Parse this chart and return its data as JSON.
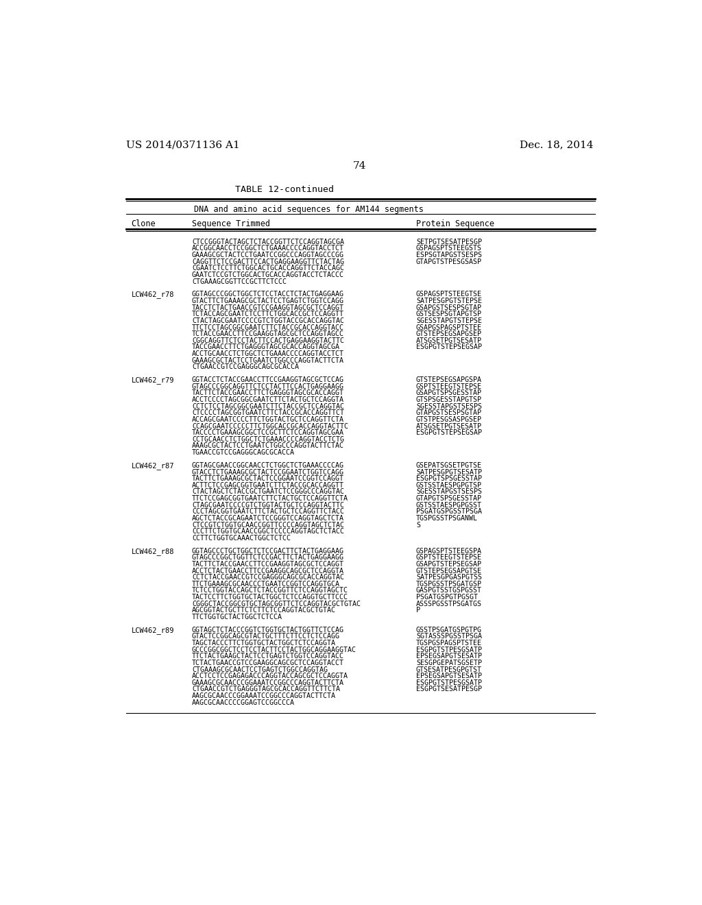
{
  "page_header_left": "US 2014/0371136 A1",
  "page_header_right": "Dec. 18, 2014",
  "page_number": "74",
  "table_title": "TABLE 12-continued",
  "table_subtitle": "DNA and amino acid sequences for AM144 segments",
  "col1_header": "Clone",
  "col2_header": "Sequence Trimmed",
  "col3_header": "Protein Sequence",
  "background_color": "#ffffff",
  "text_color": "#000000",
  "entries": [
    {
      "clone": "",
      "sequences": [
        [
          "CTCCGGGTACTAGCTCTACCGGTTCTCCAGGTAGCGA",
          "SETPGTSESATPESGP"
        ],
        [
          "ACCGGCAACCTCCGGCTCTGAAACCCCAGGTACCTCT",
          "GSPAGSPTSTEEGSTS"
        ],
        [
          "GAAAGCGCTACTCCTGAATCCGGCCCAGGTAGCCCGG",
          "ESPSGTAPGSTSESPS"
        ],
        [
          "CAGGTTCTCCGACTTCCACTGAGGAAGGTTCTACTAG",
          "GTAPGTSTPESGSASP"
        ],
        [
          "CGAATCTCCTTCTGGCACTGCACCAGGTTCTACCAGC",
          ""
        ],
        [
          "GAATCTCCGTCTGGCACTGCACCAGGTACCTCTACCC",
          ""
        ],
        [
          "CTGAAAGCGGTTCCGCTTCTCCC",
          ""
        ]
      ]
    },
    {
      "clone": "LCW462_r78",
      "sequences": [
        [
          "GGTAGCCCGGCTGGCTCTCCTACCTCTACTGAGGAAG",
          "GSPAGSPTSTEEGTSE"
        ],
        [
          "GTACTTCTGAAAGCGCTACTCCTGAGTCTGGTCCAGG",
          "SATPESGPGTSTEPSE"
        ],
        [
          "TACCTCTACTGAACCGTCCGAAGGTAGCGCTCCAGGT",
          "GSAPGSTSESPSGTAP"
        ],
        [
          "TCTACCAGCGAATCTCCTTCTGGCACCGCTCCAGGTT",
          "GSTSESPSGTAPGTSP"
        ],
        [
          "CTACTAGCGAATCCCCGTCTGGTACCGCACCAGGTAC",
          "SGESSTAPGTSTEPSE"
        ],
        [
          "TTCTCCTAGCGGCGAATCTTCTACCGCACCAGGTACC",
          "GSAPGSPAGSPTSTEE"
        ],
        [
          "TCTACCGAACCTTCCGAAGGTAGCGCTCCAGGTAGCC",
          "GTSTEPSEGSAPGSEP"
        ],
        [
          "CGGCAGGTTCTCCTACTTCCACTGAGGAAGGTACTTC",
          "ATSGSETPGTSESATP"
        ],
        [
          "TACCGAACCTTCTGAGGGTAGCGCACCAGGTAGCGA",
          "ESGPGTSTEPSEGSAP"
        ],
        [
          "ACCTGCAACCTCTGGCTCTGAAACCCCAGGTACCTCT",
          ""
        ],
        [
          "GAAAGCGCTACTCCTGAATCTGGCCCAGGTACTTCTA",
          ""
        ],
        [
          "CTGAACCGTCCGAGGGCAGCGCACCA",
          ""
        ]
      ]
    },
    {
      "clone": "LCW462_r79",
      "sequences": [
        [
          "GGTACCTCTACCGAACCTTCCGAAGGTAGCGCTCCAG",
          "GTSTEPSEGSAPGSPA"
        ],
        [
          "GTAGCCCGGCAGGTTCTCCTACTTCCACTGAGGAAGG",
          "GSPTSTEEGTSTEPSE"
        ],
        [
          "TACTTCTACCGAACCTTCTGAGGGTAGCGCACCAGGT",
          "GSAPGTSPSGESSTAP"
        ],
        [
          "ACCTCCCCTAGCGGCGAATCTTCTACTGCTCCAGGTA",
          "GTSPSGESSTAPGTSP"
        ],
        [
          "CCTCTCCTAGCGGCGAATCTTCTACCGCTCCAGGTAC",
          "SGESSTAPGSTSESPS"
        ],
        [
          "CTCCCCTAGCGGTGAATCTTCTACCGCACCAGGTTCT",
          "GTAPGSTSESPSGTAP"
        ],
        [
          "ACCAGCGAATCCCCTTCTGGTACTGCTCCAGGTTCTA",
          "GTSTPESGSASPGSEP"
        ],
        [
          "CCAGCGAATCCCCCTTCTGGCACCGCACCAGGTACTTC",
          "ATSGSETPGTSESATP"
        ],
        [
          "TACCCCTGAAAGCGGCTCCGCTTCTCCAGGTAGCGAA",
          "ESGPGTSTEPSEGSAP"
        ],
        [
          "CCTGCAACCTCTGGCTCTGAAACCCCAGGTACCTCTG",
          ""
        ],
        [
          "AAAGCGCTACTCCTGAATCTGGCCCAGGTACTTCTAC",
          ""
        ],
        [
          "TGAACCGTCCGAGGGCAGCGCACCA",
          ""
        ]
      ]
    },
    {
      "clone": "LCW462_r87",
      "sequences": [
        [
          "GGTAGCGAACCGGCAACCTCTGGCTCTGAAACCCCAG",
          "GSEPATSGSETPGTSE"
        ],
        [
          "GTACCTCTGAAAGCGCTACTCCGGAATCTGGTCCAGG",
          "SATPESGPGTSESATP"
        ],
        [
          "TACTTCTGAAAGCGCTACTCCGGAATCCGGTCCAGGT",
          "ESGPGTSPSGESSTAP"
        ],
        [
          "ACTTCTCCGAGCGGTGAATCTTCTACCGCACCAGGTT",
          "GSTSSTAESPGPGTSP"
        ],
        [
          "CTACTAGCTCTACCGCTGAATCTCCGGGCCCAGGTAC",
          "SGESSTAPGSTSESPS"
        ],
        [
          "TTCTCCGAGCGGTGAATCTTCTACTGCTCCAGGTTCTA",
          "GTAPGTSPSGESSTAP"
        ],
        [
          "CTAGCGAATCCCCGTCTGGTACTGCTCCAGGTACTTC",
          "GSTSSTAESPGPGSST"
        ],
        [
          "CCCTAGCGGTGAATCTTCTACTGCTCCAGGTTCTACC",
          "PSGATGSPGSSTPSGA"
        ],
        [
          "AGCTCTACCGCAGAATCTCCGGGTCCAGGTAGCTCTA",
          "TGSPGSSTPSGANWL"
        ],
        [
          "CTCCGTCTGGTGCAACCGGTTCCCCAGGTAGCTCTAC",
          "S"
        ],
        [
          "CCCTTCTGGTGCAACCGGCTCCCCAGGTAGCTCTACC",
          ""
        ],
        [
          "CCTTCTGGTGCAAACTGGCTCTCC",
          ""
        ]
      ]
    },
    {
      "clone": "LCW462_r88",
      "sequences": [
        [
          "GGTAGCCCTGCTGGCTCTCCGACTTCTACTGAGGAAG",
          "GSPAGSPTSTEEGSPA"
        ],
        [
          "GTAGCCCGGCTGGTTCTCCGACTTCTACTGAGGAAGG",
          "GSPTSTEEGTSTEPSE"
        ],
        [
          "TACTTCTACCGAACCTTCCGAAGGTAGCGCTCCAGGT",
          "GSAPGTSTEPSEGSAP"
        ],
        [
          "ACCTCTACTGAACCTTCCGAAGGCAGCGCTCCAGGTA",
          "GTSTEPSEGSAPGTSE"
        ],
        [
          "CCTCTACCGAACCGTCCGAGGGCAGCGCACCAGGTAC",
          "SATPESGPGASPGTSS"
        ],
        [
          "TTCTGAAAGCGCAACCCTGAATCCGGTCCAGGTGCA",
          "TGSPGSSTPSGATGSP"
        ],
        [
          "TCTCCTGGTACCAGCTCTACCGGTTCTCCAGGTAGCTC",
          "GASPGTSSTGSPGSST"
        ],
        [
          "TACTCCTTCTGGTGCTACTGGCTCTCCAGGTGCTTCCC",
          "PSGATGSPGTPGSGT"
        ],
        [
          "CGGGCTACCGGCGTGCTAGCGGTTCTCCAGGTACGCTGTAC",
          "ASSSPGSSTPSGATGS"
        ],
        [
          "AGCGGTACTGCTTCTCTTCTCCAGGTACGCTGTAC",
          "P"
        ],
        [
          "TTCTGGTGCTACTGGCTCTCCA",
          ""
        ]
      ]
    },
    {
      "clone": "LCW462_r89",
      "sequences": [
        [
          "GGTAGCTCTACCCGGTCTGGTGCTACTGGTTCTCCAG",
          "GSSTPSGATGSPGTPG"
        ],
        [
          "GTACTCCGGCAGCGTACTGCTTTCTTCCTCTCCAGG",
          "SGTASSSPGSSTPSGA"
        ],
        [
          "TAGCTACCCTTCTGGTGCTACTGGCTCTCCAGGTA",
          "TGSPGSPAGSPTSTEE"
        ],
        [
          "GCCCGGCGGCTCCTCCTACTTCCTACTGGCAGGAAGGTAC",
          "ESGPGTSTPESGSATP"
        ],
        [
          "TTCTACTGAAGCTACTCCTGAGTCTGGTCCAGGTACC",
          "EPSEGSAPGTSESATP"
        ],
        [
          "TCTACTGAACCGTCCGAAGGCAGCGCTCCAGGTACCT",
          "SESGPGEPATSGSETP"
        ],
        [
          "CTGAAAGCGCAACTCCTGAGTCTGGCCAGGTAG",
          "GTSESATPESGPGTST"
        ],
        [
          "ACCTCCTCCGAGAGACCCAGGTACCAGCGCTCCAGGTA",
          "EPSEGSAPGTSESATP"
        ],
        [
          "GAAAGCGCAACCCGGAAATCCGGCCCAGGTACTTCTA",
          "ESGPGTSTPESGSATP"
        ],
        [
          "CTGAACCGTCTGAGGGTAGCGCACCAGGTTCTTCTA",
          "ESGPGTSESATPESGP"
        ],
        [
          "AAGCGCAACCCGGAAATCCGGCCCAGGTACTTCTA",
          ""
        ],
        [
          "AAGCGCAACCCCGGAGTCCGGCCCA",
          ""
        ]
      ]
    }
  ]
}
